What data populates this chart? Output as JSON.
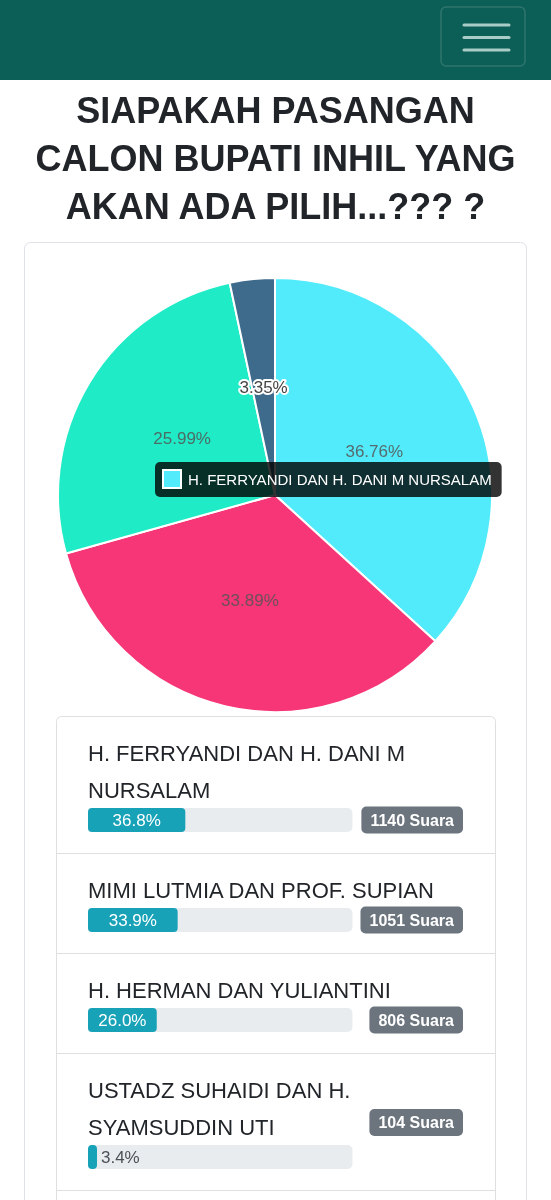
{
  "chart_data": [
    {
      "type": "pie",
      "title": "SIAPAKAH PASANGAN CALON BUPATI INHIL YANG AKAN ADA PILIH...??? ?",
      "categories": [
        "H. FERRYANDI DAN H. DANI M NURSALAM",
        null,
        null,
        null
      ],
      "values": [
        36.76,
        33.89,
        25.99,
        3.35
      ],
      "colors": [
        "#52ebfb",
        "#f63677",
        "#1febc6",
        "#3e6a8c"
      ],
      "value_labels": [
        "36.76%",
        "33.89%",
        "25.99%",
        "3.35%"
      ]
    },
    {
      "type": "bar",
      "orientation": "horizontal",
      "categories": [
        "H. FERRYANDI DAN H. DANI M NURSALAM",
        "MIMI LUTMIA DAN PROF. SUPIAN",
        "H. HERMAN DAN YULIANTINI",
        "USTADZ SUHAIDI DAN H. SYAMSUDDIN UTI"
      ],
      "values": [
        36.8,
        33.9,
        26.0,
        3.4
      ],
      "color": "#17a2b8",
      "xlim": [
        0,
        100
      ],
      "tick_labels": "y",
      "value_labels": [
        "36.8%",
        "33.9%",
        "26.0%",
        "3.4%"
      ],
      "annotations": [
        "1140 Suara",
        "1051 Suara",
        "806 Suara",
        "104 Suara"
      ]
    }
  ]
}
